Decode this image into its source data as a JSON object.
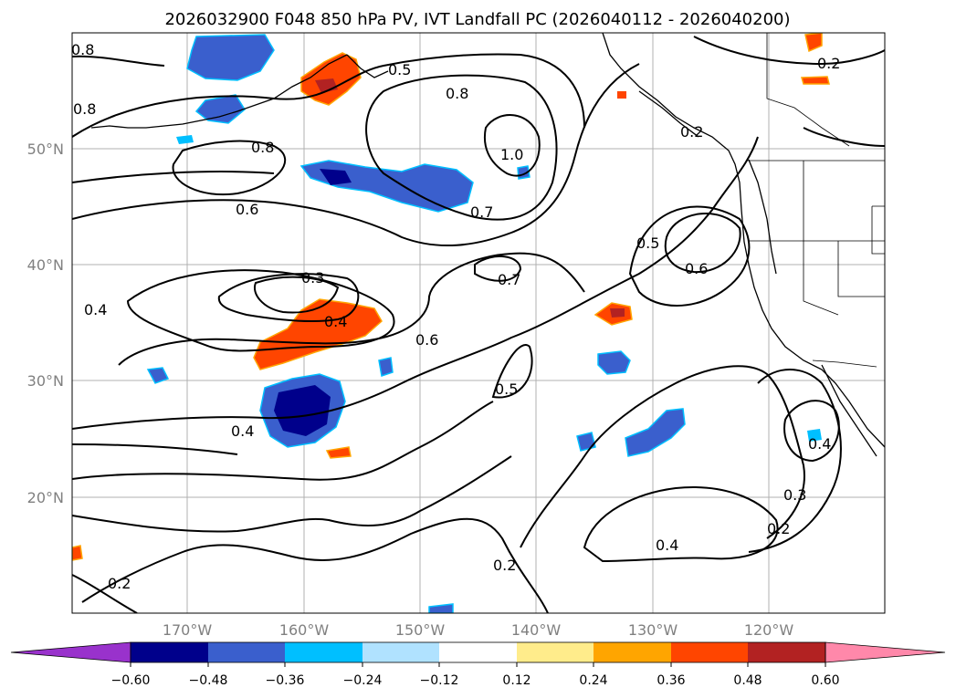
{
  "title": "2026032900 F048 850 hPa PV, IVT Landfall PC (2026040112 - 2026040200)",
  "lon_labels": [
    "170°W",
    "160°W",
    "150°W",
    "140°W",
    "130°W",
    "120°W"
  ],
  "lat_labels": [
    "50°N",
    "40°N",
    "30°N",
    "20°N"
  ],
  "contour_labels": [
    "0.8",
    "0.8",
    "0.8",
    "0.5",
    "0.8",
    "1.0",
    "0.7",
    "0.6",
    "0.3",
    "0.4",
    "0.4",
    "0.7",
    "0.6",
    "0.5",
    "0.5",
    "0.6",
    "0.2",
    "0.2",
    "0.4",
    "0.2",
    "0.4",
    "0.2",
    "0.3",
    "0.2",
    "0.4"
  ],
  "colorbar": {
    "tick_labels": [
      "−0.60",
      "−0.48",
      "−0.36",
      "−0.24",
      "−0.12",
      "0.12",
      "0.24",
      "0.36",
      "0.48",
      "0.60"
    ],
    "colors": [
      "#9932cc",
      "#00008b",
      "#3a5fcd",
      "#00bfff",
      "#b0e2ff",
      "#ffffff",
      "#ffec8b",
      "#ffa500",
      "#ff4500",
      "#b22222",
      "#ff88aa"
    ]
  }
}
